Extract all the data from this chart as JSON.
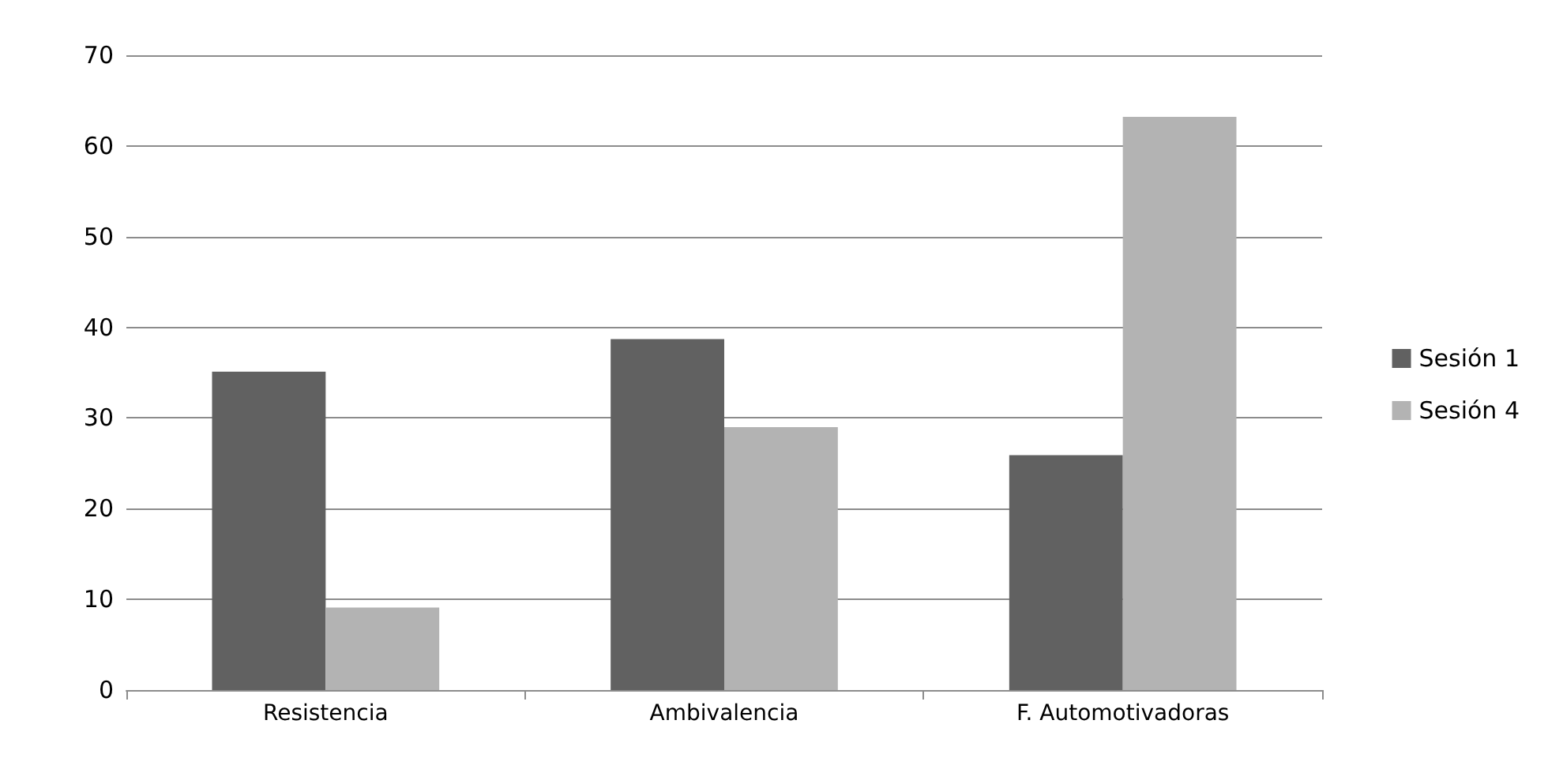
{
  "chart_data": {
    "type": "bar",
    "categories": [
      "Resistencia",
      "Ambivalencia",
      "F. Automotivadoras"
    ],
    "series": [
      {
        "name": "Sesión 1",
        "color": "#616161",
        "values": [
          35.1,
          38.7,
          25.9
        ]
      },
      {
        "name": "Sesión 4",
        "color": "#b3b3b3",
        "values": [
          9.1,
          29.0,
          63.2
        ]
      }
    ],
    "ylim": [
      0,
      70
    ],
    "yticks": [
      0,
      10,
      20,
      30,
      40,
      50,
      60,
      70
    ],
    "grid": "y",
    "legend": "right"
  }
}
